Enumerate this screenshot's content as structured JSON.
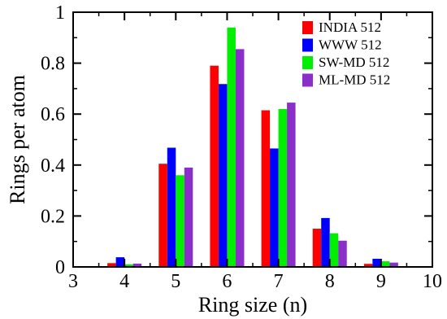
{
  "chart_data": {
    "type": "bar",
    "title": "",
    "xlabel": "Ring size (n)",
    "ylabel": "Rings per atom",
    "xlim": [
      3,
      10
    ],
    "ylim": [
      0,
      1
    ],
    "x_ticks": [
      "3",
      "4",
      "5",
      "6",
      "7",
      "8",
      "9",
      "10"
    ],
    "y_ticks": [
      "0",
      "0.2",
      "0.4",
      "0.6",
      "0.8",
      "1"
    ],
    "categories": [
      4,
      5,
      6,
      7,
      8,
      9
    ],
    "legend_position": "top-right",
    "grid": false,
    "series": [
      {
        "name": "INDIA 512",
        "color": "#ff0000",
        "values": [
          0.015,
          0.405,
          0.79,
          0.615,
          0.15,
          0.012
        ]
      },
      {
        "name": "WWW 512",
        "color": "#0000ff",
        "values": [
          0.038,
          0.468,
          0.718,
          0.465,
          0.192,
          0.032
        ]
      },
      {
        "name": "SW-MD 512",
        "color": "#00ee00",
        "values": [
          0.01,
          0.36,
          0.94,
          0.62,
          0.132,
          0.022
        ]
      },
      {
        "name": "ML-MD 512",
        "color": "#8b2fc9",
        "values": [
          0.013,
          0.39,
          0.855,
          0.645,
          0.103,
          0.017
        ]
      }
    ]
  }
}
